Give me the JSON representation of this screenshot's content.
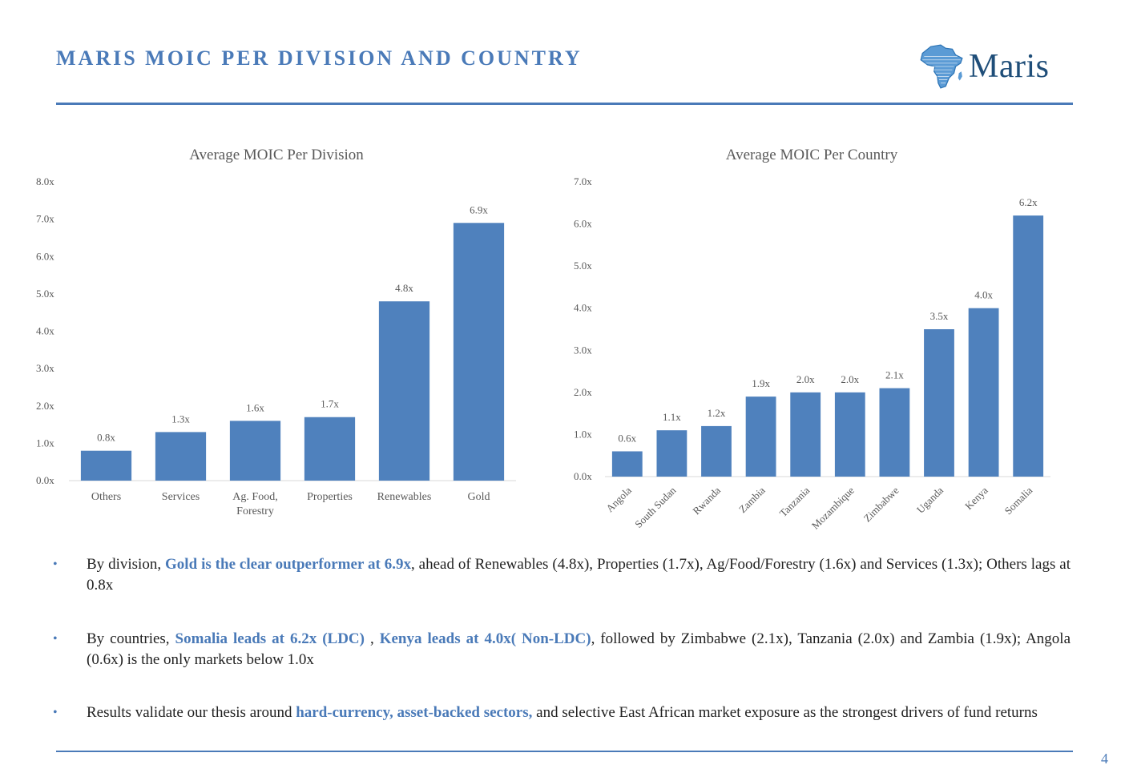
{
  "page": {
    "title": "MARIS MOIC PER DIVISION AND COUNTRY",
    "logo_text": "Maris",
    "logo_icon": "africa-map-icon",
    "page_number": "4"
  },
  "colors": {
    "accent": "#4a7ab8",
    "bar": "#4f81bd",
    "logo_text": "#1f4e79"
  },
  "chart_data": [
    {
      "type": "bar",
      "title": "Average MOIC Per Division",
      "categories": [
        "Others",
        "Services",
        "Ag. Food, Forestry",
        "Properties",
        "Renewables",
        "Gold"
      ],
      "category_lines": [
        [
          "Others"
        ],
        [
          "Services"
        ],
        [
          "Ag. Food,",
          "Forestry"
        ],
        [
          "Properties"
        ],
        [
          "Renewables"
        ],
        [
          "Gold"
        ]
      ],
      "values": [
        0.8,
        1.3,
        1.6,
        1.7,
        4.8,
        6.9
      ],
      "data_labels": [
        "0.8x",
        "1.3x",
        "1.6x",
        "1.7x",
        "4.8x",
        "6.9x"
      ],
      "ylim": [
        0,
        8
      ],
      "yticks": [
        0,
        1,
        2,
        3,
        4,
        5,
        6,
        7,
        8
      ],
      "ytick_labels": [
        "0.0x",
        "1.0x",
        "2.0x",
        "3.0x",
        "4.0x",
        "5.0x",
        "6.0x",
        "7.0x",
        "8.0x"
      ],
      "grid": false,
      "legend": "none",
      "xlabel": "",
      "ylabel": ""
    },
    {
      "type": "bar",
      "title": "Average MOIC Per Country",
      "categories": [
        "Angola",
        "South Sudan",
        "Rwanda",
        "Zambia",
        "Tanzania",
        "Mozambique",
        "Zimbabwe",
        "Uganda",
        "Kenya",
        "Somalia"
      ],
      "values": [
        0.6,
        1.1,
        1.2,
        1.9,
        2.0,
        2.0,
        2.1,
        3.5,
        4.0,
        6.2
      ],
      "data_labels": [
        "0.6x",
        "1.1x",
        "1.2x",
        "1.9x",
        "2.0x",
        "2.0x",
        "2.1x",
        "3.5x",
        "4.0x",
        "6.2x"
      ],
      "ylim": [
        0,
        7
      ],
      "yticks": [
        0,
        1,
        2,
        3,
        4,
        5,
        6,
        7
      ],
      "ytick_labels": [
        "0.0x",
        "1.0x",
        "2.0x",
        "3.0x",
        "4.0x",
        "5.0x",
        "6.0x",
        "7.0x"
      ],
      "grid": false,
      "legend": "none",
      "xlabel": "",
      "ylabel": ""
    }
  ],
  "bullets": [
    [
      {
        "t": "By division, "
      },
      {
        "t": "Gold is the clear outperformer at 6.9x",
        "hl": true
      },
      {
        "t": ", ahead of Renewables (4.8x), Properties (1.7x), Ag/Food/Forestry (1.6x) and Services (1.3x); Others lags at 0.8x"
      }
    ],
    [
      {
        "t": "By countries, "
      },
      {
        "t": "Somalia leads at 6.2x (LDC)",
        "hl": true
      },
      {
        "t": " , "
      },
      {
        "t": "Kenya leads at 4.0x( Non-LDC)",
        "hl": true
      },
      {
        "t": ", followed by Zimbabwe (2.1x), Tanzania (2.0x) and Zambia (1.9x); Angola (0.6x) is the only markets below 1.0x"
      }
    ],
    [
      {
        "t": "Results validate our thesis around "
      },
      {
        "t": "hard-currency, asset-backed sectors,",
        "hl": true
      },
      {
        "t": " and selective East African market exposure as the strongest drivers of fund returns"
      }
    ]
  ]
}
